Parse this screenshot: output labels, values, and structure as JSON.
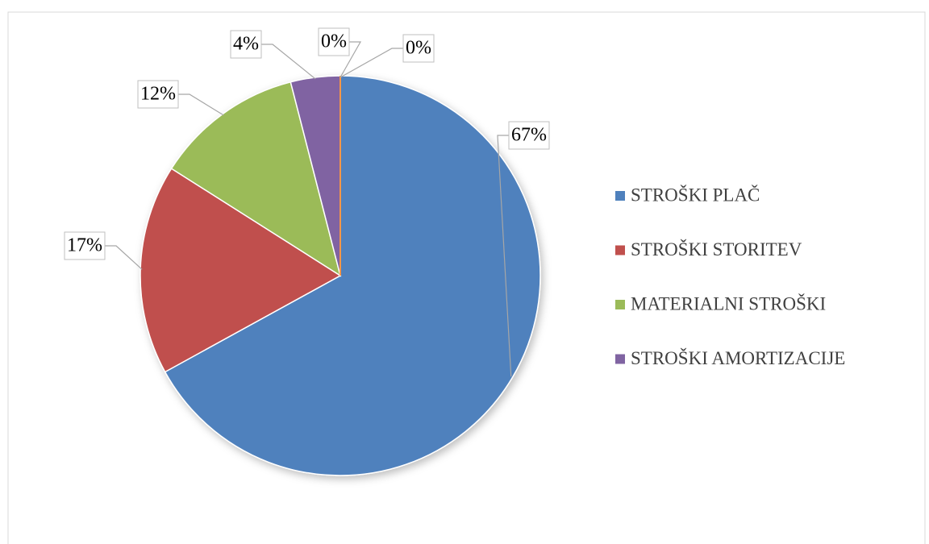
{
  "chart_data": {
    "type": "pie",
    "categories": [
      "STROŠKI PLAČ",
      "STROŠKI STORITEV",
      "MATERIALNI STROŠKI",
      "STROŠKI AMORTIZACIJE",
      null,
      null
    ],
    "values": [
      67,
      17,
      12,
      4,
      0,
      0
    ],
    "value_labels": [
      "67%",
      "17%",
      "12%",
      "4%",
      "0%",
      "0%"
    ],
    "colors": [
      "#4f81bd",
      "#c0504d",
      "#9bbb59",
      "#8064a2",
      "#4bacc6",
      "#f79646"
    ],
    "legend": "right"
  }
}
